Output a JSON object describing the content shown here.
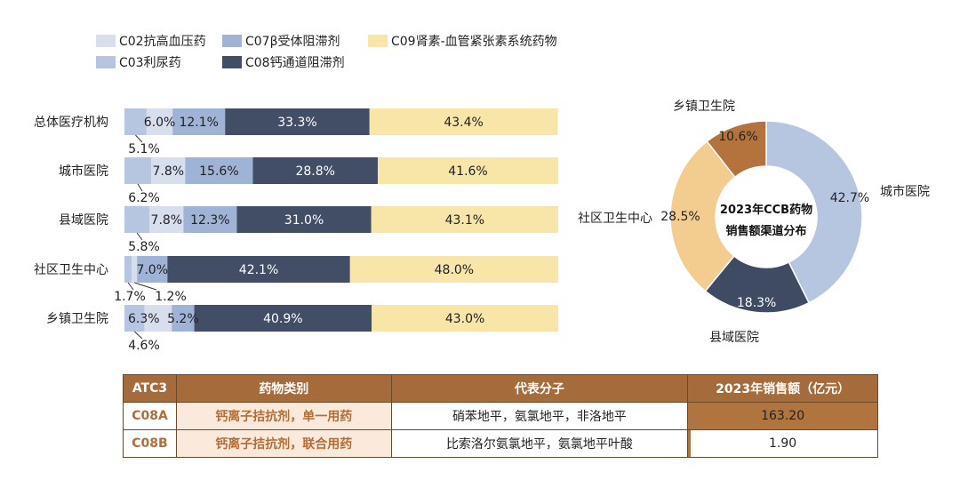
{
  "colors": {
    "C02": "#d7dfee",
    "C03": "#b7c6e0",
    "C07": "#9fb3d6",
    "C08": "#414e66",
    "C09": "#f8e6a8",
    "donut_city": "#b7c6e0",
    "donut_county": "#3e4b63",
    "donut_community": "#f3cd90",
    "donut_town": "#b4733c",
    "table_header": "#a56b3a",
    "table_accent": "#b36d36"
  },
  "chart_data": [
    {
      "type": "bar",
      "orientation": "horizontal",
      "stacked": true,
      "categories": [
        "总体医疗机构",
        "城市医院",
        "县域医院",
        "社区卫生中心",
        "乡镇卫生院"
      ],
      "series": [
        {
          "key": "C03",
          "name": "C03利尿药",
          "values": [
            5.1,
            6.2,
            5.8,
            1.7,
            4.6
          ],
          "labels": [
            "5.1%",
            "6.2%",
            "5.8%",
            "1.7%",
            "4.6%"
          ]
        },
        {
          "key": "C02",
          "name": "C02抗高血压药",
          "values": [
            6.0,
            7.8,
            7.8,
            1.2,
            6.3
          ],
          "labels": [
            "6.0%",
            "7.8%",
            "7.8%",
            "1.2%",
            "6.3%"
          ]
        },
        {
          "key": "C07",
          "name": "C07β受体阻滞剂",
          "values": [
            12.1,
            15.6,
            12.3,
            7.0,
            5.2
          ],
          "labels": [
            "12.1%",
            "15.6%",
            "12.3%",
            "7.0%",
            "5.2%"
          ]
        },
        {
          "key": "C08",
          "name": "C08钙通道阻滞剂",
          "values": [
            33.3,
            28.8,
            31.0,
            42.1,
            40.9
          ],
          "labels": [
            "33.3%",
            "28.8%",
            "31.0%",
            "42.1%",
            "40.9%"
          ]
        },
        {
          "key": "C09",
          "name": "C09肾素-血管紧张素系统药物",
          "values": [
            43.4,
            41.6,
            43.1,
            48.0,
            43.0
          ],
          "labels": [
            "43.4%",
            "41.6%",
            "43.1%",
            "48.0%",
            "43.0%"
          ]
        }
      ],
      "legend_order": [
        "C02",
        "C07",
        "C09",
        "C03",
        "C08"
      ],
      "legend_position": "top-left",
      "xlim": [
        0,
        100
      ]
    },
    {
      "type": "pie",
      "donut": true,
      "center_title": [
        "2023年CCB药物",
        "销售额渠道分布"
      ],
      "slices": [
        {
          "name": "城市医院",
          "value": 42.7,
          "label": "42.7%",
          "colorKey": "donut_city"
        },
        {
          "name": "县域医院",
          "value": 18.3,
          "label": "18.3%",
          "colorKey": "donut_county"
        },
        {
          "name": "社区卫生中心",
          "value": 28.5,
          "label": "28.5%",
          "colorKey": "donut_community"
        },
        {
          "name": "乡镇卫生院",
          "value": 10.6,
          "label": "10.6%",
          "colorKey": "donut_town"
        }
      ]
    },
    {
      "type": "table",
      "headers": [
        "ATC3",
        "药物类别",
        "代表分子",
        "2023年销售额（亿元）"
      ],
      "rows": [
        {
          "atc3": "C08A",
          "category": "钙离子拮抗剂，单一用药",
          "molecules": "硝苯地平，氨氯地平，非洛地平",
          "sales": 163.2,
          "sales_label": "163.20"
        },
        {
          "atc3": "C08B",
          "category": "钙离子拮抗剂，联合用药",
          "molecules": "比索洛尔氨氯地平，氨氯地平叶酸",
          "sales": 1.9,
          "sales_label": "1.90"
        }
      ]
    }
  ]
}
